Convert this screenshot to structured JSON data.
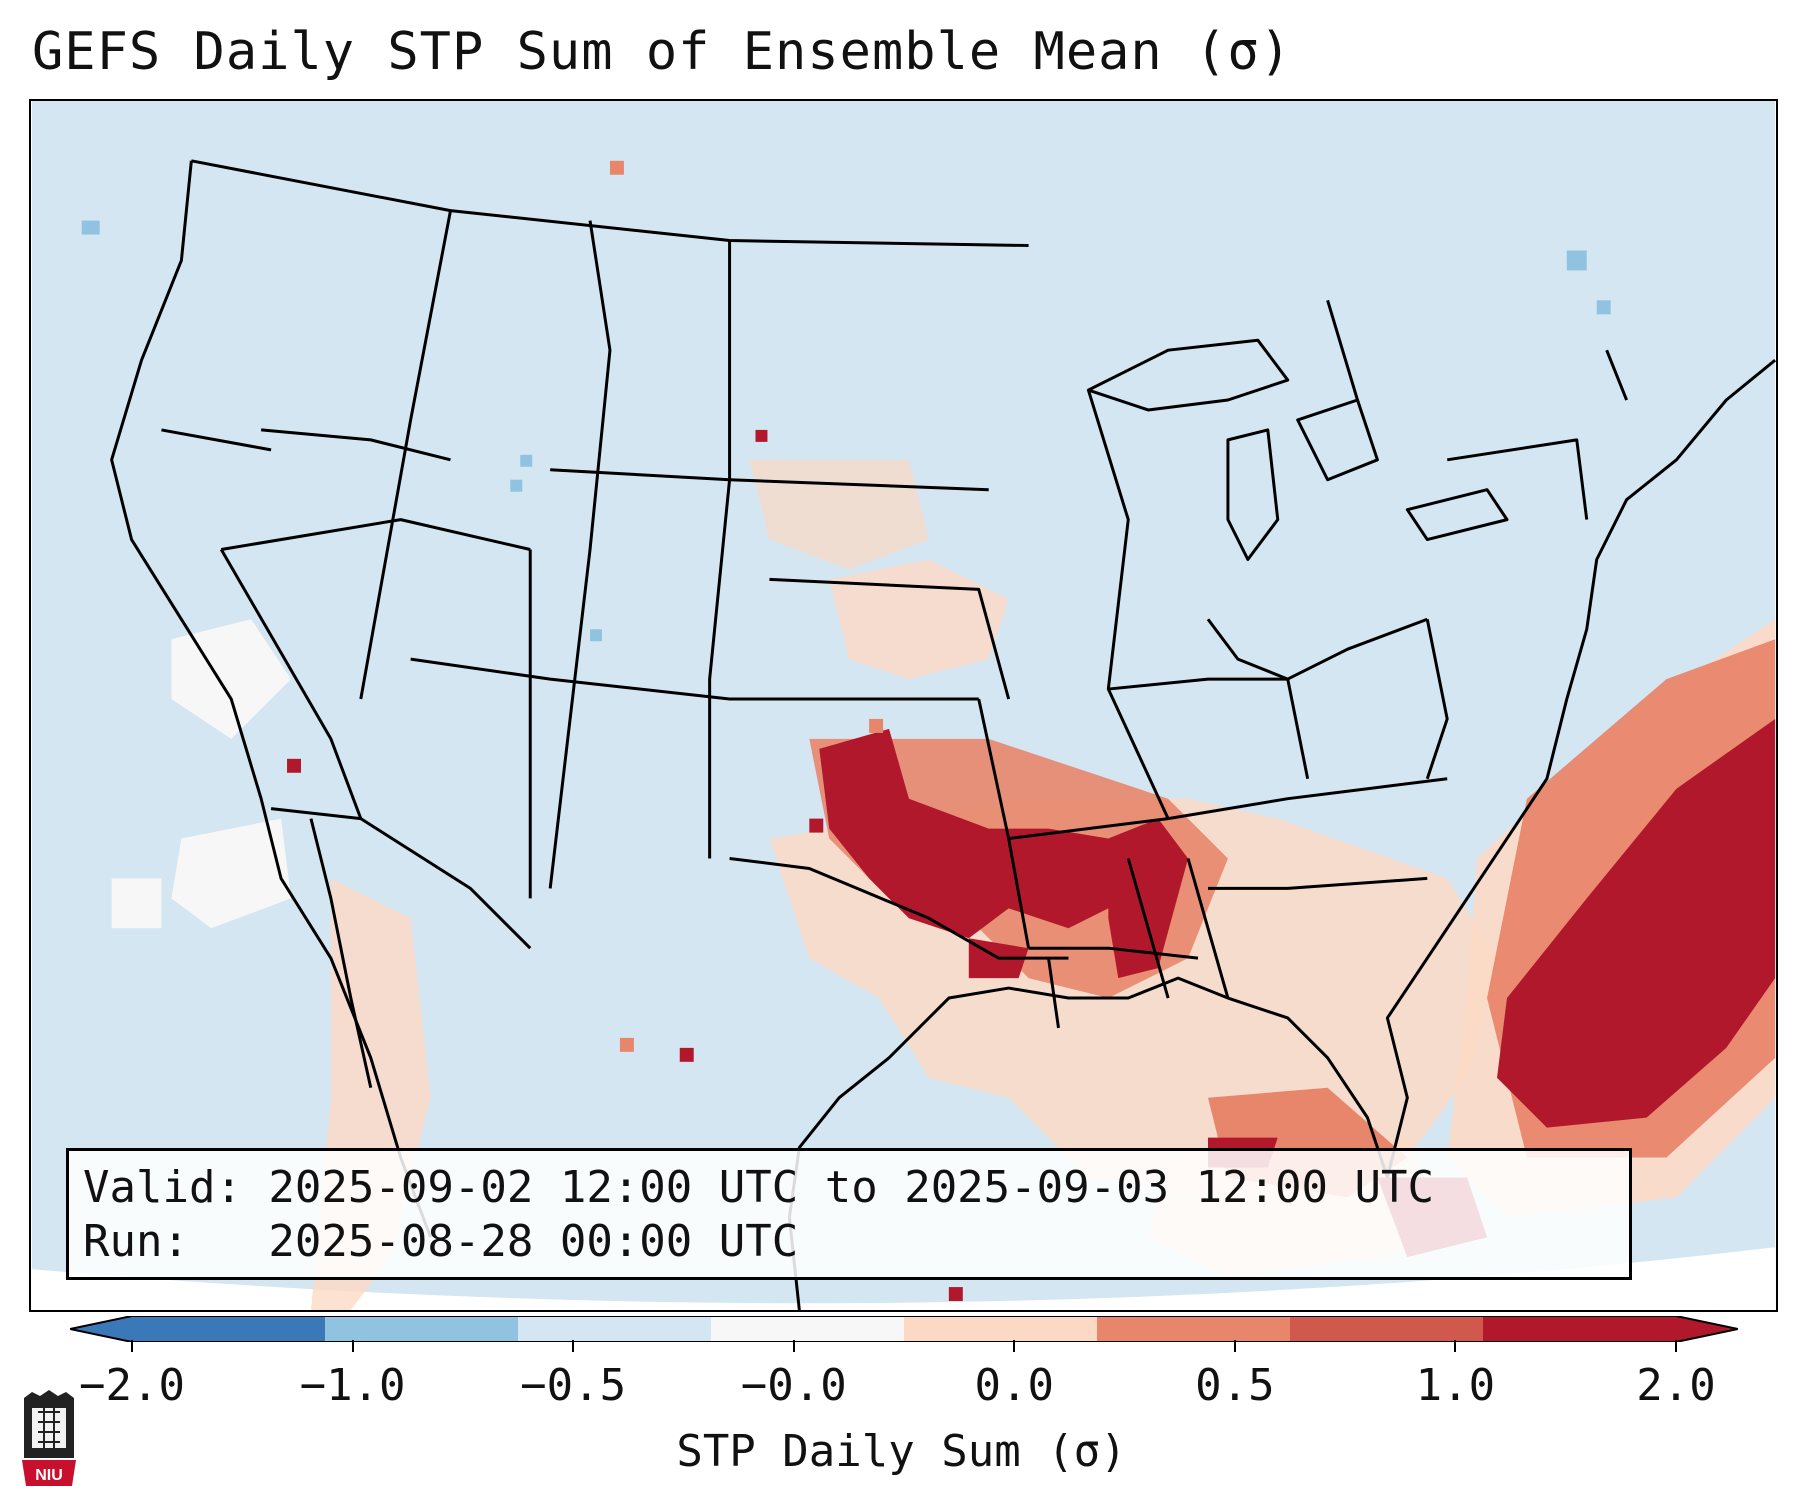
{
  "title": "GEFS Daily STP Sum of Ensemble Mean (σ)",
  "valid_line": "Valid: 2025-09-02 12:00 UTC to 2025-09-03 12:00 UTC",
  "run_line": "Run:   2025-08-28 00:00 UTC",
  "colorbar": {
    "label": "STP Daily Sum (σ)",
    "ticks": [
      "−2.0",
      "−1.0",
      "−0.5",
      "−0.0",
      "0.0",
      "0.5",
      "1.0",
      "2.0"
    ],
    "colors": [
      "#3a78b8",
      "#8fc3e0",
      "#d4e6f1",
      "#f7f7f7",
      "#fcd9c5",
      "#e8866c",
      "#d0584d",
      "#b2182b"
    ]
  },
  "map": {
    "ocean_color": "#d4e6f1",
    "land_color": "#d4e6f1",
    "border_color": "#000000",
    "hot_color": "#b2182b",
    "warm_color": "#e8866c",
    "light_color": "#fcd9c5"
  },
  "logo_text": "NIU"
}
